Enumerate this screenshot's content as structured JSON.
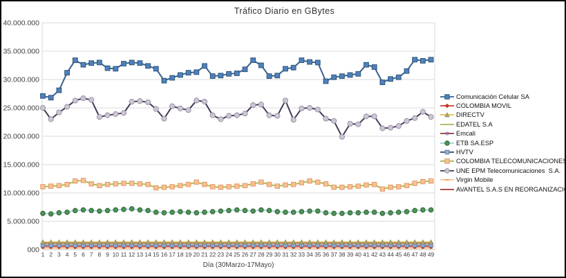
{
  "chart": {
    "title": "Tráfico Diario en GBytes",
    "x_axis": {
      "title": "Día (30Marzo-17Mayo)",
      "tick_labels": [
        1,
        2,
        3,
        4,
        5,
        6,
        7,
        8,
        9,
        10,
        11,
        12,
        13,
        14,
        15,
        16,
        17,
        18,
        19,
        20,
        21,
        22,
        23,
        24,
        25,
        26,
        27,
        28,
        29,
        30,
        31,
        32,
        33,
        34,
        35,
        36,
        37,
        38,
        39,
        40,
        41,
        42,
        43,
        44,
        45,
        46,
        47,
        48,
        49
      ]
    },
    "y_axis": {
      "tick_labels": [
        "40.000.000",
        "35.000.000",
        "30.000.000",
        "25.000.000",
        "20.000.000",
        "15.000.000",
        "10.000.000",
        "5.000.000",
        "000"
      ],
      "tick_values": [
        40000000,
        35000000,
        30000000,
        25000000,
        20000000,
        15000000,
        10000000,
        5000000,
        0
      ]
    },
    "colors": {
      "gridline": "#d9d9d9",
      "axis_line": "#bfbfbf",
      "text": "#3f3f3f"
    }
  },
  "chart_data": {
    "type": "line",
    "title": "Tráfico Diario en GBytes",
    "xlabel": "Día (30Marzo-17Mayo)",
    "ylabel": "",
    "x": [
      1,
      2,
      3,
      4,
      5,
      6,
      7,
      8,
      9,
      10,
      11,
      12,
      13,
      14,
      15,
      16,
      17,
      18,
      19,
      20,
      21,
      22,
      23,
      24,
      25,
      26,
      27,
      28,
      29,
      30,
      31,
      32,
      33,
      34,
      35,
      36,
      37,
      38,
      39,
      40,
      41,
      42,
      43,
      44,
      45,
      46,
      47,
      48,
      49
    ],
    "ylim": [
      0,
      40000000
    ],
    "grid": true,
    "legend_position": "right",
    "series": [
      {
        "id": "comunicacion-celular-sa",
        "name": "Comunicación Celular SA",
        "line_color": "#34618f",
        "marker": "square",
        "marker_size": 3.4,
        "marker_fill": "#4f81bd",
        "marker_stroke": "#2e5578",
        "line_width": 2,
        "values": [
          27100000,
          26800000,
          28100000,
          31200000,
          33400000,
          32600000,
          32900000,
          33000000,
          32000000,
          31900000,
          32800000,
          33000000,
          32900000,
          32400000,
          31900000,
          29800000,
          30300000,
          30800000,
          31200000,
          31300000,
          32400000,
          30600000,
          30700000,
          31000000,
          31100000,
          31800000,
          33400000,
          32500000,
          30600000,
          30700000,
          31900000,
          32100000,
          33400000,
          33100000,
          33000000,
          29700000,
          30400000,
          30600000,
          30800000,
          31000000,
          32600000,
          32200000,
          29500000,
          30100000,
          30400000,
          31500000,
          33500000,
          33300000,
          33500000
        ]
      },
      {
        "id": "colombia-movil",
        "name": "COLOMBIA MOVIL",
        "line_color": "#d3392c",
        "marker": "diamond",
        "marker_size": 2.6,
        "marker_fill": "#d3392c",
        "marker_stroke": "#a32a20",
        "line_width": 1.3,
        "constant_value": 500000
      },
      {
        "id": "directv",
        "name": "DIRECTV",
        "line_color": "#e3c23a",
        "marker": "triangle",
        "marker_size": 3,
        "marker_fill": "#b3a67c",
        "marker_stroke": "#8c8456",
        "line_width": 1.3,
        "constant_value": 1350000
      },
      {
        "id": "edatel-sa",
        "name": "EDATEL S.A",
        "line_color": "#9bbb59",
        "marker": "none",
        "marker_size": 0,
        "marker_fill": "#9bbb59",
        "marker_stroke": "#9bbb59",
        "line_width": 1.6,
        "constant_value": 1300000
      },
      {
        "id": "emcali",
        "name": "Emcali",
        "line_color": "#943634",
        "marker": "asterisk",
        "marker_size": 3,
        "marker_fill": "#8064a2",
        "marker_stroke": "#8064a2",
        "line_width": 1.2,
        "constant_value": 1150000
      },
      {
        "id": "etb-sa-esp",
        "name": "ETB SA.ESP",
        "line_color": "#92cddc",
        "marker": "circle",
        "marker_size": 3.3,
        "marker_fill": "#4e9258",
        "marker_stroke": "#2f6632",
        "line_width": 1.5,
        "values": [
          6400000,
          6300000,
          6500000,
          6600000,
          6900000,
          7000000,
          6900000,
          6800000,
          6900000,
          7000000,
          7100000,
          7200000,
          7000000,
          6900000,
          6600000,
          6500000,
          6600000,
          6700000,
          6600000,
          6500000,
          6600000,
          6700000,
          6800000,
          6900000,
          7000000,
          6900000,
          6800000,
          7000000,
          6900000,
          6700000,
          6600000,
          6600000,
          6700000,
          6800000,
          6800000,
          6500000,
          6400000,
          6400000,
          6500000,
          6500000,
          6600000,
          6600000,
          6400000,
          6500000,
          6600000,
          6700000,
          6900000,
          7000000,
          7000000
        ]
      },
      {
        "id": "hvtv",
        "name": "HVTV",
        "line_color": "#32475f",
        "marker": "square",
        "marker_size": 2.8,
        "marker_fill": "#95b3d7",
        "marker_stroke": "#5d7fac",
        "line_width": 1.3,
        "constant_value": 800000
      },
      {
        "id": "colombia-telecomunicaciones",
        "name": "COLOMBIA TELECOMUNICACIONES",
        "line_color": "#a8b545",
        "marker": "square",
        "marker_size": 3.2,
        "marker_fill": "#fac090",
        "marker_stroke": "#de9a67",
        "line_width": 1.8,
        "values": [
          11100000,
          11200000,
          11300000,
          11500000,
          12100000,
          12200000,
          11600000,
          11300000,
          11500000,
          11600000,
          11700000,
          11700000,
          11600000,
          11500000,
          10900000,
          11000000,
          11100000,
          11300000,
          11500000,
          11900000,
          11500000,
          11100000,
          11000000,
          11100000,
          11200000,
          11300000,
          11600000,
          11900000,
          11500000,
          11200000,
          11400000,
          11500000,
          11800000,
          12100000,
          11900000,
          11600000,
          11000000,
          11000000,
          11100000,
          11200000,
          11400000,
          11500000,
          10700000,
          11000000,
          11100000,
          11300000,
          11700000,
          12000000,
          12100000
        ]
      },
      {
        "id": "une-epm-telecomunicaciones-sa",
        "name": "UNE EPM Telecomunicaciones  S.A.",
        "line_color": "#453655",
        "marker": "circle",
        "marker_size": 3.6,
        "marker_fill": "#cdc6d4",
        "marker_stroke": "#9a92a5",
        "line_width": 2,
        "values": [
          25000000,
          23000000,
          24200000,
          25200000,
          26300000,
          26700000,
          26400000,
          23400000,
          23700000,
          23900000,
          24100000,
          26100000,
          26200000,
          26000000,
          24800000,
          23100000,
          25300000,
          24900000,
          24600000,
          26300000,
          26100000,
          23700000,
          23000000,
          23600000,
          23700000,
          24000000,
          25500000,
          25600000,
          23700000,
          23600000,
          26300000,
          22900000,
          24900000,
          25000000,
          24700000,
          23100000,
          22700000,
          19900000,
          22200000,
          22100000,
          23500000,
          23500000,
          21400000,
          21500000,
          21800000,
          22700000,
          23200000,
          24300000,
          23400000
        ]
      },
      {
        "id": "virgin-mobile",
        "name": "Virgin Mobile",
        "line_color": "#fbbe8c",
        "marker": "dash",
        "marker_size": 2.6,
        "marker_fill": "#f79646",
        "marker_stroke": "#f79646",
        "line_width": 1.4,
        "constant_value": 250000
      },
      {
        "id": "avantel-sas-en-reorganizacion",
        "name": "AVANTEL S.A.S EN REORGANIZACION",
        "line_color": "#a43430",
        "marker": "none",
        "marker_size": 0,
        "marker_fill": "#a43430",
        "marker_stroke": "#a43430",
        "line_width": 1.6,
        "constant_value": 550000
      }
    ]
  }
}
